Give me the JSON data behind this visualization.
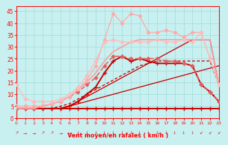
{
  "xlabel": "Vent moyen/en rafales ( km/h )",
  "xlim": [
    0,
    23
  ],
  "ylim": [
    0,
    47
  ],
  "yticks": [
    0,
    5,
    10,
    15,
    20,
    25,
    30,
    35,
    40,
    45
  ],
  "xticks": [
    0,
    1,
    2,
    3,
    4,
    5,
    6,
    7,
    8,
    9,
    10,
    11,
    12,
    13,
    14,
    15,
    16,
    17,
    18,
    19,
    20,
    21,
    22,
    23
  ],
  "bg_color": "#c8f0f0",
  "grid_color": "#a0d8d8",
  "series": [
    {
      "comment": "flat line at ~4, dark red, + markers",
      "x": [
        0,
        1,
        2,
        3,
        4,
        5,
        6,
        7,
        8,
        9,
        10,
        11,
        12,
        13,
        14,
        15,
        16,
        17,
        18,
        19,
        20,
        21,
        22,
        23
      ],
      "y": [
        4,
        4,
        4,
        4,
        4,
        4,
        4,
        4,
        4,
        4,
        4,
        4,
        4,
        4,
        4,
        4,
        4,
        4,
        4,
        4,
        4,
        4,
        4,
        4
      ],
      "color": "#cc0000",
      "lw": 1.5,
      "marker": "+",
      "ms": 4
    },
    {
      "comment": "slow diagonal line, dark red, no markers",
      "x": [
        0,
        1,
        2,
        3,
        4,
        5,
        6,
        7,
        8,
        9,
        10,
        11,
        12,
        13,
        14,
        15,
        16,
        17,
        18,
        19,
        20,
        21,
        22,
        23
      ],
      "y": [
        4,
        4,
        4,
        4,
        4,
        4,
        5,
        6,
        7,
        8,
        9,
        10,
        11,
        12,
        13,
        14,
        15,
        16,
        17,
        18,
        19,
        20,
        21,
        22
      ],
      "color": "#cc0000",
      "lw": 1.0,
      "marker": null,
      "ms": 0
    },
    {
      "comment": "diagonal line steeper, dark red, no markers",
      "x": [
        0,
        1,
        2,
        3,
        4,
        5,
        6,
        7,
        8,
        9,
        10,
        11,
        12,
        13,
        14,
        15,
        16,
        17,
        18,
        19,
        20,
        21,
        22,
        23
      ],
      "y": [
        4,
        4,
        4,
        4,
        4,
        4,
        5,
        7,
        9,
        11,
        13,
        15,
        17,
        19,
        21,
        23,
        25,
        27,
        29,
        31,
        33,
        33,
        33,
        14
      ],
      "color": "#cc0000",
      "lw": 1.0,
      "marker": null,
      "ms": 0
    },
    {
      "comment": "medium slope diagonal, dashed, dark red, no markers",
      "x": [
        0,
        1,
        2,
        3,
        4,
        5,
        6,
        7,
        8,
        9,
        10,
        11,
        12,
        13,
        14,
        15,
        16,
        17,
        18,
        19,
        20,
        21,
        22,
        23
      ],
      "y": [
        4,
        4,
        4,
        4,
        4,
        5,
        6,
        8,
        10,
        12,
        14,
        16,
        18,
        20,
        22,
        23,
        24,
        24,
        24,
        24,
        24,
        24,
        24,
        14
      ],
      "color": "#cc0000",
      "lw": 1.0,
      "dashes": [
        3,
        2
      ],
      "marker": null,
      "ms": 0
    },
    {
      "comment": "medium line with + markers, dark red",
      "x": [
        0,
        1,
        2,
        3,
        4,
        5,
        6,
        7,
        8,
        9,
        10,
        11,
        12,
        13,
        14,
        15,
        16,
        17,
        18,
        19,
        20,
        21,
        22,
        23
      ],
      "y": [
        4,
        4,
        4,
        4,
        4,
        4,
        5,
        7,
        10,
        13,
        19,
        24,
        26,
        24,
        25,
        24,
        23,
        23,
        23,
        23,
        22,
        14,
        11,
        7
      ],
      "color": "#cc0000",
      "lw": 1.5,
      "marker": "+",
      "ms": 5
    },
    {
      "comment": "medium pink with diamond markers, dashed",
      "x": [
        0,
        1,
        2,
        3,
        4,
        5,
        6,
        7,
        8,
        9,
        10,
        11,
        12,
        13,
        14,
        15,
        16,
        17,
        18,
        19,
        20,
        21,
        22,
        23
      ],
      "y": [
        4,
        4,
        4,
        5,
        6,
        7,
        9,
        11,
        14,
        17,
        22,
        26,
        26,
        25,
        25,
        25,
        25,
        24,
        24,
        23,
        22,
        14,
        11,
        7
      ],
      "color": "#e06060",
      "lw": 1.2,
      "marker": "D",
      "ms": 2.5,
      "dashes": [
        4,
        2
      ]
    },
    {
      "comment": "lighter pink diagonal up then flat, no markers",
      "x": [
        0,
        1,
        2,
        3,
        4,
        5,
        6,
        7,
        8,
        9,
        10,
        11,
        12,
        13,
        14,
        15,
        16,
        17,
        18,
        19,
        20,
        21,
        22,
        23
      ],
      "y": [
        4,
        4,
        4,
        5,
        6,
        7,
        9,
        12,
        15,
        19,
        24,
        28,
        30,
        32,
        33,
        33,
        33,
        33,
        33,
        33,
        33,
        33,
        33,
        14
      ],
      "color": "#ff9999",
      "lw": 1.2,
      "marker": null,
      "ms": 0
    },
    {
      "comment": "light pink with diamond markers, jagged high peak",
      "x": [
        0,
        1,
        2,
        3,
        4,
        5,
        6,
        7,
        8,
        9,
        10,
        11,
        12,
        13,
        14,
        15,
        16,
        17,
        18,
        19,
        20,
        21,
        22,
        23
      ],
      "y": [
        5,
        5,
        5,
        5,
        6,
        7,
        9,
        12,
        16,
        22,
        33,
        44,
        40,
        44,
        43,
        36,
        36,
        37,
        36,
        34,
        36,
        36,
        25,
        14
      ],
      "color": "#ffaaaa",
      "lw": 1.0,
      "marker": "D",
      "ms": 2.5
    },
    {
      "comment": "very light pink, broad fan top, no markers",
      "x": [
        0,
        1,
        2,
        3,
        4,
        5,
        6,
        7,
        8,
        9,
        10,
        11,
        12,
        13,
        14,
        15,
        16,
        17,
        18,
        19,
        20,
        21,
        22,
        23
      ],
      "y": [
        14,
        8,
        7,
        7,
        7,
        8,
        10,
        13,
        18,
        24,
        32,
        33,
        32,
        32,
        32,
        32,
        33,
        32,
        32,
        33,
        32,
        36,
        25,
        14
      ],
      "color": "#ffbbbb",
      "lw": 1.0,
      "marker": "D",
      "ms": 2.5
    }
  ],
  "wind_arrows": [
    "NE",
    "E",
    "E",
    "NE",
    "NE",
    "E",
    "E",
    "S",
    "S",
    "S",
    "S",
    "S",
    "S",
    "S",
    "S",
    "S",
    "S",
    "S",
    "S",
    "S",
    "S",
    "SW",
    "SW",
    "SW"
  ]
}
